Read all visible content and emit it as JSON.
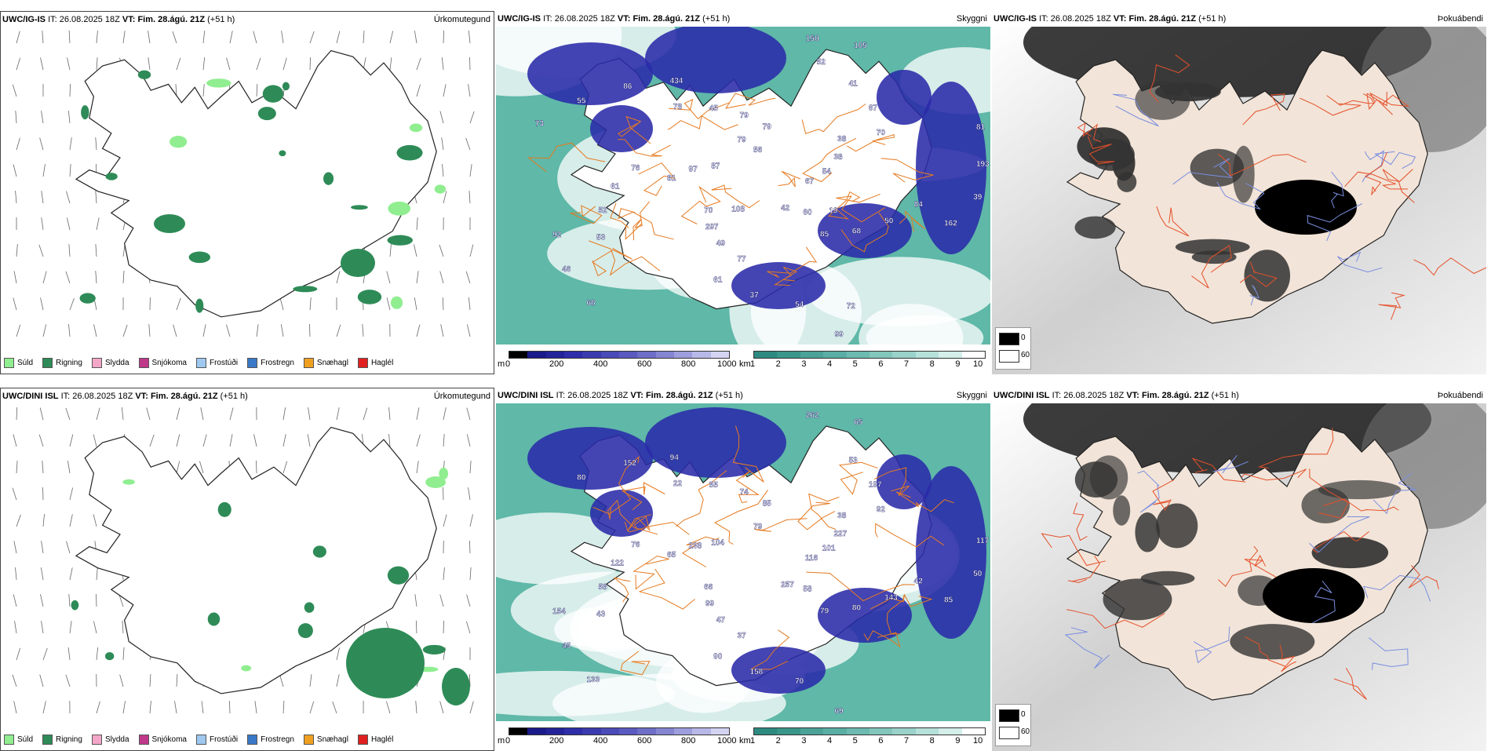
{
  "rows": [
    {
      "model": "UWC/IG-IS",
      "it_label": "IT:",
      "it_value": "26.08.2025 18Z",
      "vt_label": "VT:",
      "vt_value": "Fim. 28.ágú. 21Z",
      "lead": "(+51 h)",
      "precip_title": "Úrkomutegund",
      "cloud_title": "Skyggni",
      "fog_title": "Þokuábendi"
    },
    {
      "model": "UWC/DINI ISL",
      "it_label": "IT:",
      "it_value": "26.08.2025 18Z",
      "vt_label": "VT:",
      "vt_value": "Fim. 28.ágú. 21Z",
      "lead": "(+51 h)",
      "precip_title": "Úrkomutegund",
      "cloud_title": "Skyggni",
      "fog_title": "Þokuábendi"
    }
  ],
  "precip_legend": [
    {
      "label": "Súld",
      "color": "#90ee90"
    },
    {
      "label": "Rigning",
      "color": "#2e8b57"
    },
    {
      "label": "Slydda",
      "color": "#f4a6c8"
    },
    {
      "label": "Snjókoma",
      "color": "#c0388a"
    },
    {
      "label": "Frostúði",
      "color": "#9ec8f0"
    },
    {
      "label": "Frostregn",
      "color": "#3a78c8"
    },
    {
      "label": "Snæhagl",
      "color": "#f0a020"
    },
    {
      "label": "Haglél",
      "color": "#e02020"
    }
  ],
  "ceiling_bar": {
    "unit": "m",
    "ticks": [
      "0",
      "200",
      "400",
      "600",
      "800",
      "1000"
    ]
  },
  "visibility_bar": {
    "unit": "km",
    "ticks": [
      "1",
      "2",
      "3",
      "4",
      "5",
      "6",
      "7",
      "8",
      "9",
      "10"
    ]
  },
  "fog_legend": [
    {
      "label": "0",
      "color": "#000000"
    },
    {
      "label": "60",
      "color": "#ffffff"
    }
  ],
  "ceiling_labels_top": [
    "67",
    "70",
    "79",
    "85",
    "76",
    "70",
    "61",
    "434",
    "162",
    "92",
    "105",
    "99",
    "87",
    "54",
    "297",
    "79",
    "68",
    "61",
    "67",
    "37",
    "86",
    "39",
    "46",
    "150",
    "42",
    "97",
    "38",
    "49",
    "45",
    "50",
    "52",
    "41",
    "54",
    "55",
    "193",
    "68",
    "56",
    "60",
    "81",
    "38",
    "77",
    "78",
    "84",
    "53",
    "52",
    "72",
    "73",
    "81",
    "108",
    "79",
    "19"
  ],
  "ceiling_labels_bottom": [
    "116",
    "66",
    "85",
    "79",
    "76",
    "92",
    "90",
    "94",
    "85",
    "154",
    "65",
    "69",
    "104",
    "101",
    "99",
    "74",
    "80",
    "122",
    "197",
    "158",
    "152",
    "50",
    "45",
    "262",
    "257",
    "238",
    "227",
    "47",
    "55",
    "143",
    "58",
    "53",
    "70",
    "80",
    "117",
    "133",
    "79",
    "58",
    "65",
    "38",
    "37",
    "22",
    "42",
    "43"
  ]
}
